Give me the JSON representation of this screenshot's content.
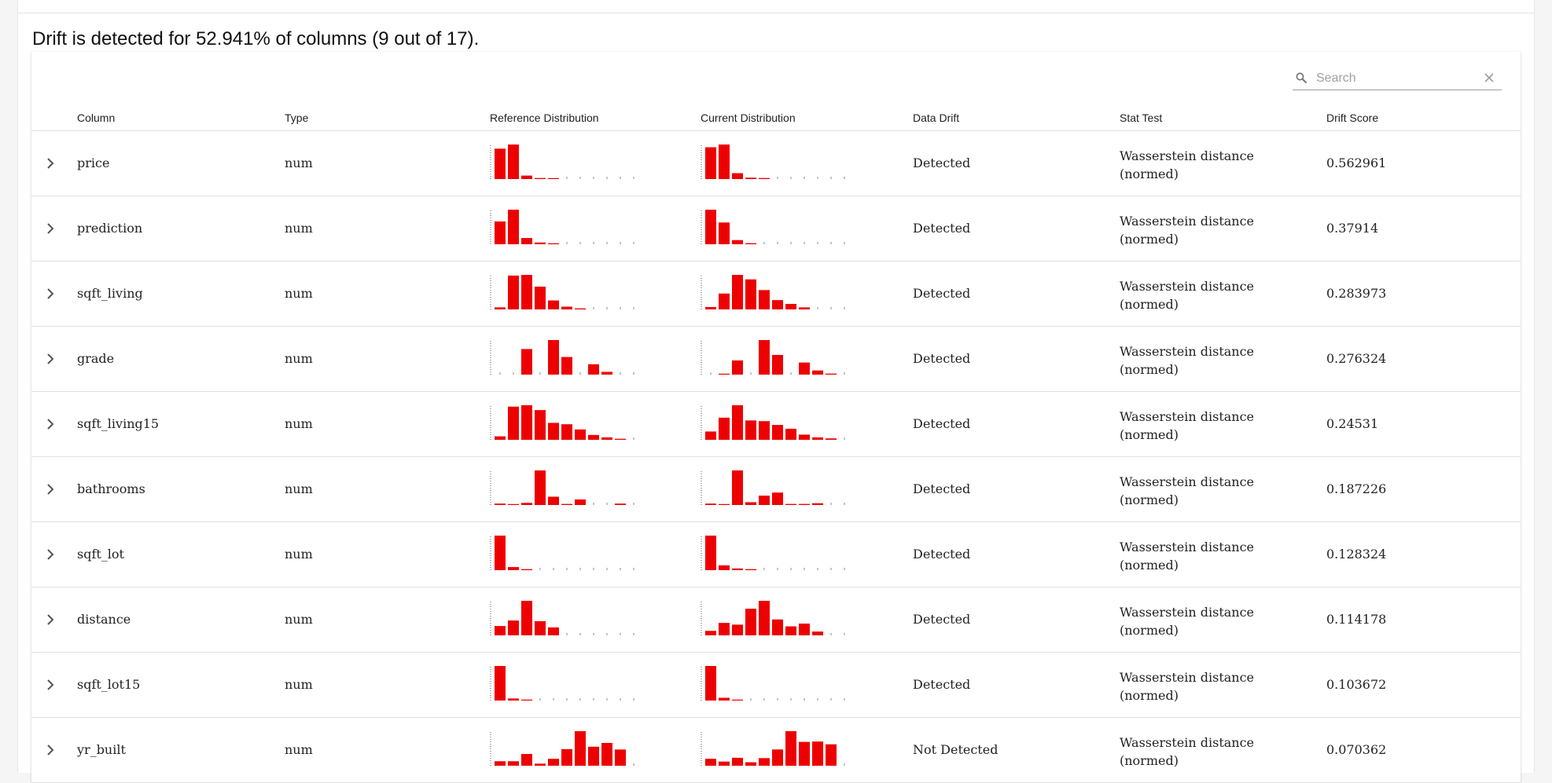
{
  "summary": "Drift is detected for 52.941% of columns (9 out of 17).",
  "search": {
    "placeholder": "Search",
    "value": ""
  },
  "colors": {
    "bar": "#ed0000"
  },
  "headers": {
    "column": "Column",
    "type": "Type",
    "reference": "Reference Distribution",
    "current": "Current Distribution",
    "drift": "Data Drift",
    "stat": "Stat Test",
    "score": "Drift Score"
  },
  "rows": [
    {
      "name": "price",
      "type": "num",
      "drift": "Detected",
      "stat": "Wasserstein distance (normed)",
      "score": "0.562961",
      "ref": [
        0.88,
        1.0,
        0.1,
        0.03,
        0.01,
        0,
        0,
        0,
        0,
        0,
        0
      ],
      "cur": [
        0.92,
        1.0,
        0.17,
        0.04,
        0.03,
        0,
        0,
        0,
        0,
        0,
        0
      ]
    },
    {
      "name": "prediction",
      "type": "num",
      "drift": "Detected",
      "stat": "Wasserstein distance (normed)",
      "score": "0.37914",
      "ref": [
        0.66,
        1.0,
        0.18,
        0.05,
        0.02,
        0,
        0,
        0,
        0,
        0,
        0
      ],
      "cur": [
        1.0,
        0.63,
        0.12,
        0.03,
        0,
        0,
        0,
        0,
        0,
        0,
        0
      ]
    },
    {
      "name": "sqft_living",
      "type": "num",
      "drift": "Detected",
      "stat": "Wasserstein distance (normed)",
      "score": "0.283973",
      "ref": [
        0.06,
        0.98,
        1.0,
        0.66,
        0.26,
        0.08,
        0.03,
        0,
        0,
        0,
        0
      ],
      "cur": [
        0.07,
        0.46,
        1.0,
        0.87,
        0.56,
        0.27,
        0.16,
        0.06,
        0,
        0,
        0
      ],
      "curFirstTick": true
    },
    {
      "name": "grade",
      "type": "num",
      "drift": "Detected",
      "stat": "Wasserstein distance (normed)",
      "score": "0.276324",
      "ref": [
        0,
        0,
        0.74,
        0,
        1.0,
        0.51,
        0,
        0.3,
        0.08,
        0,
        0
      ],
      "cur": [
        0,
        0.02,
        0.41,
        0,
        1.0,
        0.57,
        0,
        0.35,
        0.12,
        0.03,
        0
      ]
    },
    {
      "name": "sqft_living15",
      "type": "num",
      "drift": "Detected",
      "stat": "Wasserstein distance (normed)",
      "score": "0.24531",
      "ref": [
        0.1,
        0.96,
        1.0,
        0.86,
        0.49,
        0.45,
        0.3,
        0.14,
        0.07,
        0.03,
        0
      ],
      "cur": [
        0.24,
        0.64,
        1.0,
        0.56,
        0.54,
        0.43,
        0.32,
        0.15,
        0.07,
        0.04,
        0
      ]
    },
    {
      "name": "bathrooms",
      "type": "num",
      "drift": "Detected",
      "stat": "Wasserstein distance (normed)",
      "score": "0.187226",
      "ref": [
        0.04,
        0.02,
        0.06,
        1.0,
        0.24,
        0.03,
        0.16,
        0,
        0,
        0.04,
        0
      ],
      "cur": [
        0.04,
        0.02,
        1.0,
        0.08,
        0.27,
        0.36,
        0.03,
        0.03,
        0.05,
        0,
        0
      ]
    },
    {
      "name": "sqft_lot",
      "type": "num",
      "drift": "Detected",
      "stat": "Wasserstein distance (normed)",
      "score": "0.128324",
      "ref": [
        1.0,
        0.09,
        0.03,
        0,
        0,
        0,
        0,
        0,
        0,
        0,
        0
      ],
      "cur": [
        1.0,
        0.14,
        0.05,
        0.03,
        0,
        0,
        0,
        0,
        0,
        0,
        0
      ]
    },
    {
      "name": "distance",
      "type": "num",
      "drift": "Detected",
      "stat": "Wasserstein distance (normed)",
      "score": "0.114178",
      "ref": [
        0.27,
        0.43,
        1.0,
        0.41,
        0.23,
        0,
        0,
        0,
        0,
        0,
        0
      ],
      "cur": [
        0.13,
        0.36,
        0.31,
        0.77,
        1.0,
        0.46,
        0.26,
        0.34,
        0.11,
        0,
        0
      ]
    },
    {
      "name": "sqft_lot15",
      "type": "num",
      "drift": "Detected",
      "stat": "Wasserstein distance (normed)",
      "score": "0.103672",
      "ref": [
        1.0,
        0.06,
        0.02,
        0,
        0,
        0,
        0,
        0,
        0,
        0,
        0
      ],
      "cur": [
        1.0,
        0.08,
        0.02,
        0,
        0,
        0,
        0,
        0,
        0,
        0,
        0
      ]
    },
    {
      "name": "yr_built",
      "type": "num",
      "drift": "Not Detected",
      "stat": "Wasserstein distance (normed)",
      "score": "0.070362",
      "ref": [
        0.13,
        0.13,
        0.34,
        0.06,
        0.2,
        0.48,
        1.0,
        0.55,
        0.66,
        0.47,
        0
      ],
      "cur": [
        0.2,
        0.12,
        0.23,
        0.1,
        0.22,
        0.47,
        1.0,
        0.69,
        0.7,
        0.62,
        0
      ]
    }
  ]
}
